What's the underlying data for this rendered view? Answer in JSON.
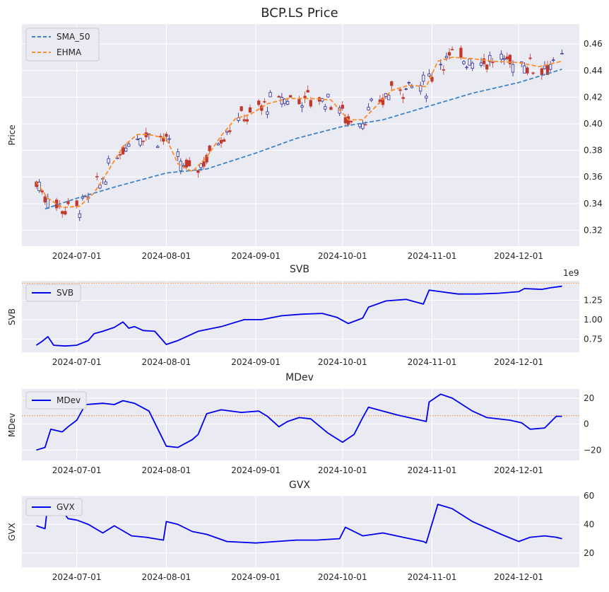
{
  "chart_data": [
    {
      "type": "candlestick",
      "title": "BCP.LS Price",
      "ylabel": "Price",
      "ylim": [
        0.308,
        0.475
      ],
      "yticks": [
        "0.32",
        "0.34",
        "0.36",
        "0.38",
        "0.40",
        "0.42",
        "0.44",
        "0.46"
      ],
      "xticks": [
        "2024-07-01",
        "2024-08-01",
        "2024-09-01",
        "2024-10-01",
        "2024-11-01",
        "2024-12-01"
      ],
      "legend": {
        "position": "top-left",
        "entries": [
          "SMA_50",
          "EHMA"
        ]
      },
      "grid": true,
      "up_color": "#1f1f8f",
      "down_color": "#c0392b",
      "series": [
        {
          "name": "SMA_50",
          "style": "dashed",
          "color": "#3d85c6",
          "x": [
            "2024-06-20",
            "2024-07-01",
            "2024-07-15",
            "2024-08-01",
            "2024-08-15",
            "2024-09-01",
            "2024-09-15",
            "2024-10-01",
            "2024-10-15",
            "2024-11-01",
            "2024-11-15",
            "2024-12-01",
            "2024-12-16"
          ],
          "values": [
            0.336,
            0.344,
            0.353,
            0.363,
            0.366,
            0.378,
            0.389,
            0.398,
            0.403,
            0.414,
            0.423,
            0.431,
            0.441
          ]
        },
        {
          "name": "EHMA",
          "style": "dashed",
          "color": "#ff8c2a",
          "x": [
            "2024-06-17",
            "2024-06-21",
            "2024-06-26",
            "2024-07-02",
            "2024-07-07",
            "2024-07-12",
            "2024-07-17",
            "2024-07-22",
            "2024-07-26",
            "2024-08-01",
            "2024-08-05",
            "2024-08-10",
            "2024-08-15",
            "2024-08-20",
            "2024-08-25",
            "2024-08-30",
            "2024-09-05",
            "2024-09-12",
            "2024-09-20",
            "2024-09-27",
            "2024-10-03",
            "2024-10-08",
            "2024-10-13",
            "2024-10-18",
            "2024-10-24",
            "2024-10-30",
            "2024-11-03",
            "2024-11-08",
            "2024-11-15",
            "2024-11-22",
            "2024-12-01",
            "2024-12-08",
            "2024-12-16"
          ],
          "values": [
            0.356,
            0.344,
            0.337,
            0.338,
            0.348,
            0.365,
            0.383,
            0.392,
            0.392,
            0.389,
            0.37,
            0.364,
            0.375,
            0.391,
            0.404,
            0.407,
            0.415,
            0.419,
            0.419,
            0.418,
            0.403,
            0.403,
            0.414,
            0.425,
            0.429,
            0.428,
            0.447,
            0.45,
            0.449,
            0.447,
            0.446,
            0.443,
            0.447
          ]
        }
      ]
    },
    {
      "type": "line",
      "title": "SVB",
      "ylabel": "SVB",
      "offset_label": "1e9",
      "ylim": [
        0.58,
        1.5
      ],
      "yticks": [
        "0.75",
        "1.00",
        "1.25"
      ],
      "xticks": [
        "2024-07-01",
        "2024-08-01",
        "2024-09-01",
        "2024-10-01",
        "2024-11-01",
        "2024-12-01"
      ],
      "legend": {
        "position": "top-left",
        "entries": [
          "SVB"
        ]
      },
      "reference_line": 1.47,
      "series": [
        {
          "name": "SVB",
          "color": "#0000ee",
          "x": [
            "2024-06-17",
            "2024-06-19",
            "2024-06-21",
            "2024-06-23",
            "2024-06-27",
            "2024-07-01",
            "2024-07-05",
            "2024-07-07",
            "2024-07-10",
            "2024-07-14",
            "2024-07-17",
            "2024-07-19",
            "2024-07-21",
            "2024-07-24",
            "2024-07-28",
            "2024-08-01",
            "2024-08-05",
            "2024-08-12",
            "2024-08-20",
            "2024-08-28",
            "2024-09-03",
            "2024-09-10",
            "2024-09-17",
            "2024-09-24",
            "2024-09-29",
            "2024-10-03",
            "2024-10-08",
            "2024-10-10",
            "2024-10-16",
            "2024-10-23",
            "2024-10-29",
            "2024-10-31",
            "2024-11-04",
            "2024-11-10",
            "2024-11-17",
            "2024-11-24",
            "2024-12-01",
            "2024-12-03",
            "2024-12-09",
            "2024-12-12",
            "2024-12-16"
          ],
          "values": [
            0.67,
            0.72,
            0.78,
            0.67,
            0.66,
            0.67,
            0.73,
            0.82,
            0.85,
            0.9,
            0.97,
            0.89,
            0.91,
            0.86,
            0.85,
            0.68,
            0.73,
            0.85,
            0.91,
            1.0,
            1.0,
            1.05,
            1.07,
            1.08,
            1.03,
            0.95,
            1.02,
            1.16,
            1.24,
            1.26,
            1.2,
            1.38,
            1.36,
            1.33,
            1.33,
            1.34,
            1.36,
            1.4,
            1.39,
            1.41,
            1.43
          ]
        }
      ]
    },
    {
      "type": "line",
      "title": "MDev",
      "ylabel": "MDev",
      "ylim": [
        -28,
        27
      ],
      "yticks": [
        "−20",
        "0",
        "20"
      ],
      "xticks": [
        "2024-07-01",
        "2024-08-01",
        "2024-09-01",
        "2024-10-01",
        "2024-11-01",
        "2024-12-01"
      ],
      "legend": {
        "position": "top-left",
        "entries": [
          "MDev"
        ]
      },
      "reference_line": 6.5,
      "series": [
        {
          "name": "MDev",
          "color": "#0000ee",
          "x": [
            "2024-06-17",
            "2024-06-20",
            "2024-06-22",
            "2024-06-26",
            "2024-06-28",
            "2024-07-01",
            "2024-07-04",
            "2024-07-10",
            "2024-07-14",
            "2024-07-17",
            "2024-07-21",
            "2024-07-26",
            "2024-08-01",
            "2024-08-05",
            "2024-08-10",
            "2024-08-12",
            "2024-08-15",
            "2024-08-20",
            "2024-08-27",
            "2024-09-02",
            "2024-09-05",
            "2024-09-09",
            "2024-09-12",
            "2024-09-16",
            "2024-09-20",
            "2024-09-26",
            "2024-10-01",
            "2024-10-05",
            "2024-10-08",
            "2024-10-10",
            "2024-10-15",
            "2024-10-20",
            "2024-10-30",
            "2024-10-31",
            "2024-11-04",
            "2024-11-08",
            "2024-11-15",
            "2024-11-20",
            "2024-11-28",
            "2024-12-02",
            "2024-12-05",
            "2024-12-10",
            "2024-12-14",
            "2024-12-16"
          ],
          "values": [
            -20,
            -18,
            -4,
            -6,
            -2,
            3,
            15,
            16,
            15,
            18,
            16,
            10,
            -17,
            -18,
            -12,
            -8,
            8,
            11,
            9,
            10,
            6,
            -2,
            2,
            5,
            4,
            -7,
            -14,
            -8,
            5,
            13,
            10,
            7,
            2,
            17,
            23,
            20,
            10,
            5,
            3,
            1,
            -4,
            -3,
            6,
            6
          ]
        }
      ]
    },
    {
      "type": "line",
      "title": "GVX",
      "ylabel": "GVX",
      "ylim": [
        10,
        60
      ],
      "yticks": [
        "20",
        "40",
        "60"
      ],
      "xticks": [
        "2024-07-01",
        "2024-08-01",
        "2024-09-01",
        "2024-10-01",
        "2024-11-01",
        "2024-12-01"
      ],
      "legend": {
        "position": "top-left",
        "entries": [
          "GVX"
        ]
      },
      "series": [
        {
          "name": "GVX",
          "color": "#0000ee",
          "x": [
            "2024-06-17",
            "2024-06-20",
            "2024-06-21",
            "2024-06-25",
            "2024-06-28",
            "2024-07-01",
            "2024-07-05",
            "2024-07-10",
            "2024-07-14",
            "2024-07-20",
            "2024-07-25",
            "2024-07-31",
            "2024-08-01",
            "2024-08-05",
            "2024-08-10",
            "2024-08-15",
            "2024-08-22",
            "2024-09-01",
            "2024-09-08",
            "2024-09-15",
            "2024-09-22",
            "2024-09-30",
            "2024-10-02",
            "2024-10-08",
            "2024-10-15",
            "2024-10-22",
            "2024-10-29",
            "2024-10-30",
            "2024-11-03",
            "2024-11-08",
            "2024-11-15",
            "2024-11-25",
            "2024-12-01",
            "2024-12-05",
            "2024-12-10",
            "2024-12-14",
            "2024-12-16"
          ],
          "values": [
            39,
            37,
            55,
            52,
            44,
            43,
            40,
            34,
            39,
            32,
            31,
            29,
            42,
            40,
            35,
            33,
            28,
            27,
            28,
            29,
            29,
            30,
            38,
            32,
            34,
            31,
            28,
            27,
            54,
            51,
            42,
            33,
            28,
            31,
            32,
            31,
            30
          ]
        }
      ]
    }
  ]
}
